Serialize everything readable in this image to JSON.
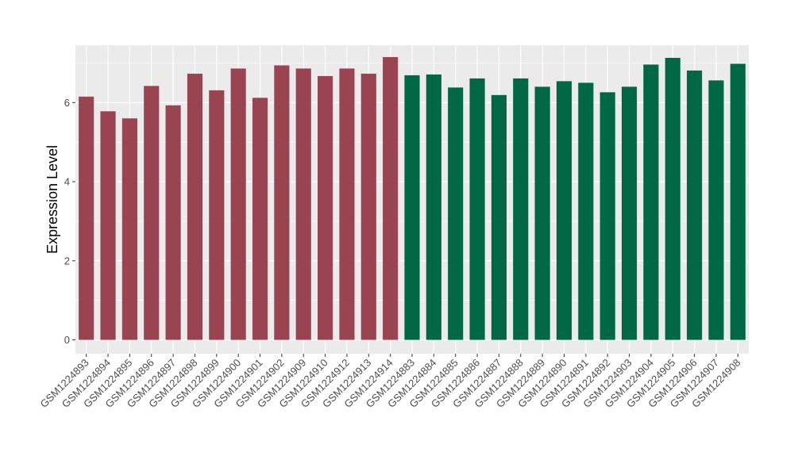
{
  "chart_data": {
    "type": "bar",
    "title": "",
    "xlabel": "",
    "ylabel": "Expression Level",
    "ylim": [
      -0.35,
      7.45
    ],
    "yticks": [
      0,
      2,
      4,
      6
    ],
    "grid": true,
    "colors": {
      "panel_background": "#ebebeb",
      "grid": "#ffffff",
      "group1": "#9b4451",
      "group2": "#006845"
    },
    "categories": [
      "GSM1224893",
      "GSM1224894",
      "GSM1224895",
      "GSM1224896",
      "GSM1224897",
      "GSM1224898",
      "GSM1224899",
      "GSM1224900",
      "GSM1224901",
      "GSM1224902",
      "GSM1224909",
      "GSM1224910",
      "GSM1224912",
      "GSM1224913",
      "GSM1224914",
      "GSM1224883",
      "GSM1224884",
      "GSM1224885",
      "GSM1224886",
      "GSM1224887",
      "GSM1224888",
      "GSM1224889",
      "GSM1224890",
      "GSM1224891",
      "GSM1224892",
      "GSM1224903",
      "GSM1224904",
      "GSM1224905",
      "GSM1224906",
      "GSM1224907",
      "GSM1224908"
    ],
    "values": [
      6.15,
      5.78,
      5.6,
      6.42,
      5.93,
      6.73,
      6.31,
      6.86,
      6.12,
      6.94,
      6.86,
      6.67,
      6.86,
      6.73,
      7.15,
      6.69,
      6.71,
      6.38,
      6.61,
      6.19,
      6.61,
      6.4,
      6.54,
      6.5,
      6.26,
      6.4,
      6.96,
      7.13,
      6.81,
      6.56,
      6.98
    ],
    "groups": [
      1,
      1,
      1,
      1,
      1,
      1,
      1,
      1,
      1,
      1,
      1,
      1,
      1,
      1,
      1,
      2,
      2,
      2,
      2,
      2,
      2,
      2,
      2,
      2,
      2,
      2,
      2,
      2,
      2,
      2,
      2
    ]
  }
}
